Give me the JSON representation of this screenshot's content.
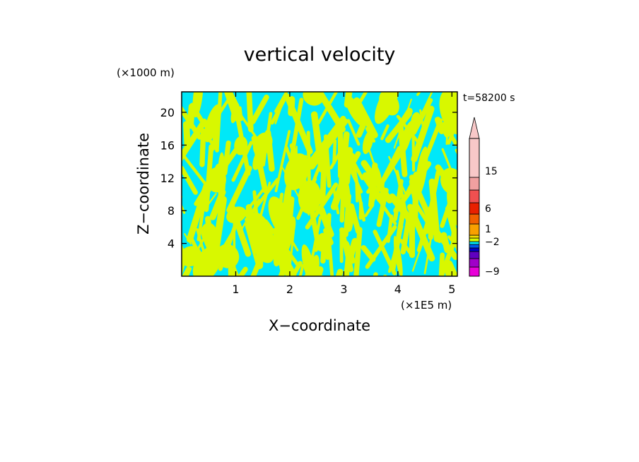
{
  "chart_data": {
    "type": "heatmap",
    "title": "vertical velocity",
    "xlabel": "X−coordinate",
    "ylabel": "Z−coordinate",
    "x_unit": "(×1E5 m)",
    "y_unit": "(×1000 m)",
    "time_label": "t=58200 s",
    "xlim": [
      0,
      5.1
    ],
    "ylim": [
      0,
      22.5
    ],
    "x_ticks": [
      "1",
      "2",
      "3",
      "4",
      "5"
    ],
    "y_ticks": [
      "4",
      "8",
      "12",
      "16",
      "20"
    ],
    "x_tick_values": [
      1,
      2,
      3,
      4,
      5
    ],
    "y_tick_values": [
      4,
      8,
      12,
      16,
      20
    ],
    "field_colors": {
      "negative": "#00e8f8",
      "positive": "#d8f800"
    },
    "colorbar": {
      "labels": [
        "15",
        "6",
        "1",
        "−2",
        "−9"
      ],
      "levels": [
        -9,
        -2,
        1,
        6,
        15
      ],
      "colors": [
        "#e800d8",
        "#a000c8",
        "#6000c0",
        "#0000c8",
        "#0058f0",
        "#00e8f8",
        "#d8f800",
        "#f8e000",
        "#f8a000",
        "#f06000",
        "#e82000",
        "#f05050",
        "#f0a0a0",
        "#f8c8c8"
      ],
      "extend": "max"
    }
  }
}
